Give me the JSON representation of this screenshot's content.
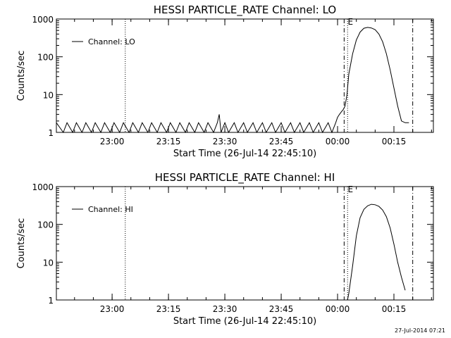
{
  "stamp": "27-Jul-2014 07:21",
  "chart_data": [
    {
      "type": "line",
      "title": "HESSI PARTICLE_RATE Channel: LO",
      "xlabel": "Start Time (26-Jul-14 22:45:10)",
      "ylabel": "Counts/sec",
      "yscale": "log",
      "ylim": [
        1,
        1000
      ],
      "xlim": [
        "22:45:10",
        "00:25:30"
      ],
      "yticks": [
        "1",
        "10",
        "100",
        "1000"
      ],
      "xticks": [
        "23:00",
        "23:15",
        "23:30",
        "23:45",
        "00:00",
        "00:15"
      ],
      "legend": {
        "position": "top-left"
      },
      "series": [
        {
          "name": "Channel: LO",
          "color": "#000000",
          "x": [
            "22:45:10",
            "22:47:00",
            "22:48:00",
            "22:49:30",
            "22:50:30",
            "22:52:00",
            "22:53:00",
            "22:54:30",
            "22:55:30",
            "22:57:00",
            "22:58:00",
            "22:59:30",
            "23:00:30",
            "23:02:00",
            "23:03:00",
            "23:04:30",
            "23:05:30",
            "23:07:00",
            "23:08:00",
            "23:09:30",
            "23:10:30",
            "23:12:00",
            "23:13:00",
            "23:14:30",
            "23:15:30",
            "23:17:00",
            "23:18:00",
            "23:19:30",
            "23:20:30",
            "23:22:00",
            "23:23:00",
            "23:24:30",
            "23:25:30",
            "23:27:00",
            "23:28:00",
            "23:28:30",
            "23:29:00",
            "23:30:00",
            "23:31:00",
            "23:32:30",
            "23:33:30",
            "23:35:00",
            "23:36:00",
            "23:37:30",
            "23:38:30",
            "23:40:00",
            "23:41:00",
            "23:42:30",
            "23:43:30",
            "23:45:00",
            "23:46:00",
            "23:47:30",
            "23:48:30",
            "23:50:00",
            "23:51:00",
            "23:52:30",
            "23:53:30",
            "23:55:00",
            "23:56:00",
            "23:57:30",
            "23:58:30",
            "23:59:30",
            "00:00:00",
            "00:00:30",
            "00:01:00",
            "00:01:30",
            "00:02:00",
            "00:02:30",
            "00:03:00",
            "00:04:00",
            "00:05:00",
            "00:06:00",
            "00:07:00",
            "00:08:00",
            "00:09:00",
            "00:10:00",
            "00:11:00",
            "00:12:00",
            "00:13:00",
            "00:14:00",
            "00:15:00",
            "00:16:00",
            "00:17:00",
            "00:18:00",
            "00:19:00"
          ],
          "y": [
            1.8,
            1,
            1.8,
            1,
            1.8,
            1,
            1.8,
            1,
            1.8,
            1,
            1.8,
            1,
            1.8,
            1,
            1.8,
            1,
            1.8,
            1,
            1.8,
            1,
            1.8,
            1,
            1.8,
            1,
            1.8,
            1,
            1.8,
            1,
            1.8,
            1,
            1.8,
            1,
            1.8,
            1,
            1.8,
            3,
            1,
            1.8,
            1,
            1.8,
            1,
            1.8,
            1,
            1.8,
            1,
            1.8,
            1,
            1.8,
            1,
            1.8,
            1,
            1.8,
            1,
            1.8,
            1,
            1.8,
            1,
            1.8,
            1,
            1.8,
            1,
            1.8,
            2.5,
            3,
            3.5,
            4,
            5,
            10,
            35,
            120,
            280,
            450,
            570,
            600,
            580,
            520,
            400,
            250,
            120,
            45,
            15,
            5,
            2,
            1.8,
            1.8
          ]
        }
      ],
      "vlines": [
        {
          "x": "23:03:30",
          "style": "dotted"
        },
        {
          "x": "00:01:45",
          "style": "dash-dot"
        },
        {
          "x": "00:02:40",
          "style": "dotted"
        },
        {
          "x": "00:20:00",
          "style": "dash-dot"
        }
      ]
    },
    {
      "type": "line",
      "title": "HESSI PARTICLE_RATE Channel: HI",
      "xlabel": "Start Time (26-Jul-14 22:45:10)",
      "ylabel": "Counts/sec",
      "yscale": "log",
      "ylim": [
        1,
        1000
      ],
      "xlim": [
        "22:45:10",
        "00:25:30"
      ],
      "yticks": [
        "1",
        "10",
        "100",
        "1000"
      ],
      "xticks": [
        "23:00",
        "23:15",
        "23:30",
        "23:45",
        "00:00",
        "00:15"
      ],
      "legend": {
        "position": "top-left"
      },
      "series": [
        {
          "name": "Channel: HI",
          "color": "#000000",
          "x": [
            "00:02:40",
            "00:03:00",
            "00:04:00",
            "00:05:00",
            "00:06:00",
            "00:07:00",
            "00:08:00",
            "00:09:00",
            "00:10:00",
            "00:11:00",
            "00:12:00",
            "00:13:00",
            "00:14:00",
            "00:15:00",
            "00:16:00",
            "00:17:00",
            "00:18:00"
          ],
          "y": [
            1,
            1.5,
            8,
            50,
            150,
            250,
            310,
            340,
            330,
            300,
            240,
            160,
            80,
            30,
            10,
            4,
            1.8
          ]
        }
      ],
      "vlines": [
        {
          "x": "23:03:30",
          "style": "dotted"
        },
        {
          "x": "00:01:45",
          "style": "dash-dot"
        },
        {
          "x": "00:02:40",
          "style": "dotted"
        },
        {
          "x": "00:20:00",
          "style": "dash-dot"
        }
      ]
    }
  ]
}
